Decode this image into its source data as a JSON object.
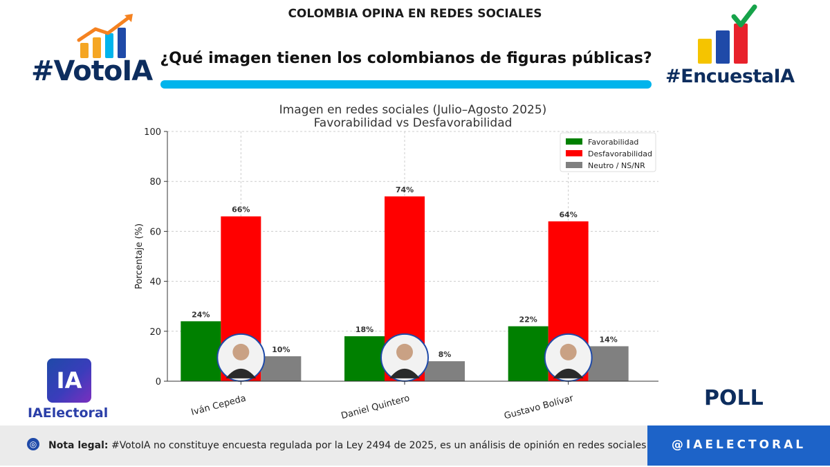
{
  "header": {
    "top_title": "COLOMBIA OPINA EN REDES SOCIALES",
    "question": "¿Qué imagen tienen los colombianos de figuras públicas?"
  },
  "brands": {
    "left": "#VotoIA",
    "right": "#EncuestaIA",
    "ia_logo_text": "IA",
    "ia_label": "IAElectoral",
    "poll": "POLL"
  },
  "footer": {
    "legal_label": "Nota legal:",
    "legal_text": " #VotoIA no constituye encuesta regulada por la Ley 2494 de 2025, es un análisis de opinión en redes sociales con IA.",
    "handle": "@IAELECTORAL"
  },
  "colors": {
    "favorable": "#008000",
    "unfavorable": "#ff0000",
    "neutral": "#808080",
    "brand_navy": "#0d2d5e",
    "accent_blue": "#00b4ec"
  },
  "chart_data": {
    "type": "bar",
    "title": "Imagen en redes sociales (Julio–Agosto 2025)",
    "subtitle": "Favorabilidad vs Desfavorabilidad",
    "xlabel": "",
    "ylabel": "Porcentaje (%)",
    "ylim": [
      0,
      100
    ],
    "yticks": [
      0,
      20,
      40,
      60,
      80,
      100
    ],
    "grid": true,
    "legend_position": "top-right",
    "categories": [
      "Iván Cepeda",
      "Daniel Quintero",
      "Gustavo Bolívar"
    ],
    "series": [
      {
        "name": "Favorabilidad",
        "values": [
          24,
          18,
          22
        ],
        "labels": [
          "24%",
          "18%",
          "22%"
        ]
      },
      {
        "name": "Desfavorabilidad",
        "values": [
          66,
          74,
          64
        ],
        "labels": [
          "66%",
          "74%",
          "64%"
        ]
      },
      {
        "name": "Neutro / NS/NR",
        "values": [
          10,
          8,
          14
        ],
        "labels": [
          "10%",
          "8%",
          "14%"
        ]
      }
    ]
  }
}
